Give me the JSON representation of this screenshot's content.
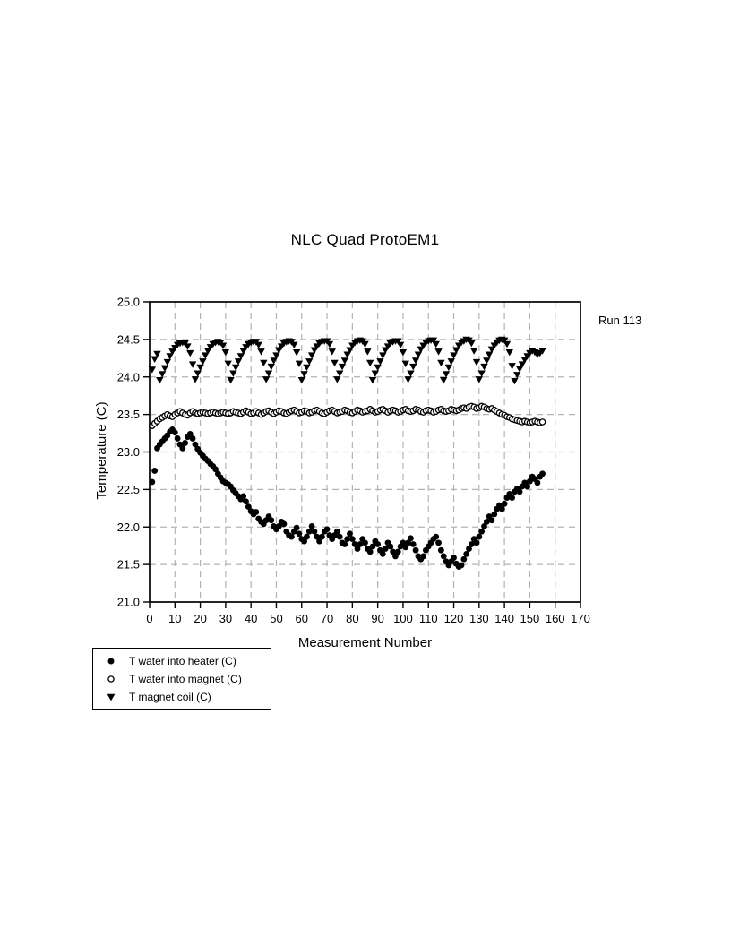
{
  "chart_data": {
    "type": "scatter",
    "title": "NLC Quad ProtoEM1",
    "annotation": "Run 113",
    "xlabel": "Measurement Number",
    "ylabel": "Temperature (C)",
    "xlim": [
      0,
      170
    ],
    "ylim": [
      21.0,
      25.0
    ],
    "xticks": [
      0,
      10,
      20,
      30,
      40,
      50,
      60,
      70,
      80,
      90,
      100,
      110,
      120,
      130,
      140,
      150,
      160,
      170
    ],
    "yticks": [
      "21.0",
      "21.5",
      "22.0",
      "22.5",
      "23.0",
      "23.5",
      "24.0",
      "24.5",
      "25.0"
    ],
    "grid": true,
    "grid_style": "dashed",
    "legend_position": "below-left",
    "colors": {
      "points": "#000000",
      "grid": "#b3b3b3",
      "background": "#ffffff"
    },
    "series": [
      {
        "name": "T water into heater (C)",
        "marker": "filled-circle",
        "x_start": 1,
        "y": [
          22.6,
          22.75,
          23.05,
          23.1,
          23.14,
          23.18,
          23.22,
          23.27,
          23.3,
          23.26,
          23.18,
          23.1,
          23.05,
          23.12,
          23.2,
          23.24,
          23.18,
          23.1,
          23.04,
          22.99,
          22.95,
          22.91,
          22.88,
          22.84,
          22.81,
          22.77,
          22.71,
          22.66,
          22.61,
          22.59,
          22.57,
          22.54,
          22.49,
          22.45,
          22.41,
          22.37,
          22.41,
          22.34,
          22.27,
          22.21,
          22.17,
          22.2,
          22.11,
          22.07,
          22.04,
          22.09,
          22.14,
          22.09,
          22.01,
          21.97,
          22.01,
          22.07,
          22.04,
          21.94,
          21.89,
          21.87,
          21.94,
          21.99,
          21.91,
          21.84,
          21.81,
          21.87,
          21.94,
          22.01,
          21.94,
          21.87,
          21.81,
          21.87,
          21.94,
          21.97,
          21.89,
          21.84,
          21.89,
          21.94,
          21.87,
          21.79,
          21.77,
          21.84,
          21.91,
          21.84,
          21.77,
          21.71,
          21.77,
          21.84,
          21.79,
          21.71,
          21.67,
          21.74,
          21.81,
          21.77,
          21.69,
          21.64,
          21.71,
          21.79,
          21.74,
          21.67,
          21.61,
          21.67,
          21.74,
          21.79,
          21.73,
          21.79,
          21.85,
          21.77,
          21.69,
          21.61,
          21.57,
          21.61,
          21.69,
          21.74,
          21.79,
          21.84,
          21.87,
          21.79,
          21.69,
          21.61,
          21.54,
          21.49,
          21.54,
          21.59,
          21.51,
          21.47,
          21.49,
          21.57,
          21.64,
          21.71,
          21.77,
          21.84,
          21.79,
          21.87,
          21.94,
          22.01,
          22.07,
          22.14,
          22.09,
          22.17,
          22.24,
          22.29,
          22.24,
          22.31,
          22.39,
          22.44,
          22.39,
          22.47,
          22.51,
          22.47,
          22.54,
          22.59,
          22.54,
          22.61,
          22.67,
          22.64,
          22.59,
          22.67,
          22.71
        ]
      },
      {
        "name": "T water into magnet (C)",
        "marker": "open-circle",
        "x_start": 1,
        "y": [
          23.35,
          23.38,
          23.41,
          23.44,
          23.46,
          23.48,
          23.5,
          23.48,
          23.47,
          23.5,
          23.52,
          23.54,
          23.52,
          23.5,
          23.49,
          23.52,
          23.54,
          23.52,
          23.51,
          23.52,
          23.53,
          23.52,
          23.51,
          23.52,
          23.53,
          23.52,
          23.51,
          23.52,
          23.53,
          23.52,
          23.51,
          23.52,
          23.54,
          23.53,
          23.52,
          23.51,
          23.53,
          23.55,
          23.53,
          23.51,
          23.52,
          23.54,
          23.52,
          23.5,
          23.52,
          23.54,
          23.55,
          23.53,
          23.51,
          23.53,
          23.55,
          23.54,
          23.52,
          23.51,
          23.53,
          23.55,
          23.56,
          23.54,
          23.52,
          23.53,
          23.55,
          23.54,
          23.52,
          23.53,
          23.55,
          23.56,
          23.54,
          23.52,
          23.51,
          23.53,
          23.55,
          23.56,
          23.54,
          23.52,
          23.53,
          23.54,
          23.56,
          23.55,
          23.53,
          23.52,
          23.54,
          23.56,
          23.55,
          23.53,
          23.54,
          23.55,
          23.57,
          23.55,
          23.53,
          23.54,
          23.56,
          23.57,
          23.55,
          23.53,
          23.55,
          23.56,
          23.55,
          23.53,
          23.54,
          23.56,
          23.57,
          23.55,
          23.54,
          23.55,
          23.57,
          23.56,
          23.54,
          23.53,
          23.55,
          23.56,
          23.55,
          23.53,
          23.54,
          23.56,
          23.57,
          23.55,
          23.54,
          23.55,
          23.57,
          23.56,
          23.55,
          23.56,
          23.58,
          23.59,
          23.58,
          23.6,
          23.61,
          23.6,
          23.58,
          23.59,
          23.61,
          23.6,
          23.58,
          23.57,
          23.58,
          23.56,
          23.54,
          23.52,
          23.5,
          23.49,
          23.47,
          23.46,
          23.44,
          23.43,
          23.42,
          23.41,
          23.4,
          23.41,
          23.4,
          23.39,
          23.4,
          23.41,
          23.4,
          23.39,
          23.4
        ]
      },
      {
        "name": "T magnet coil (C)",
        "marker": "filled-triangle-down",
        "x_start": 1,
        "y": [
          24.1,
          24.24,
          24.31,
          23.96,
          24.04,
          24.12,
          24.2,
          24.28,
          24.34,
          24.39,
          24.43,
          24.45,
          24.46,
          24.45,
          24.41,
          24.32,
          24.17,
          23.97,
          24.05,
          24.13,
          24.21,
          24.29,
          24.35,
          24.4,
          24.44,
          24.46,
          24.47,
          24.46,
          24.42,
          24.33,
          24.18,
          23.96,
          24.05,
          24.13,
          24.21,
          24.28,
          24.35,
          24.4,
          24.44,
          24.46,
          24.47,
          24.47,
          24.43,
          24.34,
          24.19,
          23.97,
          24.05,
          24.14,
          24.22,
          24.29,
          24.36,
          24.41,
          24.45,
          24.47,
          24.48,
          24.47,
          24.43,
          24.33,
          24.18,
          23.96,
          24.04,
          24.13,
          24.21,
          24.29,
          24.36,
          24.41,
          24.45,
          24.47,
          24.48,
          24.48,
          24.44,
          24.34,
          24.19,
          23.97,
          24.05,
          24.14,
          24.22,
          24.3,
          24.36,
          24.42,
          24.46,
          24.48,
          24.49,
          24.48,
          24.44,
          24.34,
          24.19,
          23.96,
          24.05,
          24.13,
          24.21,
          24.29,
          24.36,
          24.41,
          24.45,
          24.47,
          24.48,
          24.48,
          24.43,
          24.33,
          24.18,
          23.97,
          24.05,
          24.14,
          24.22,
          24.3,
          24.37,
          24.42,
          24.46,
          24.48,
          24.49,
          24.49,
          24.44,
          24.34,
          24.19,
          23.96,
          24.04,
          24.13,
          24.21,
          24.29,
          24.36,
          24.42,
          24.46,
          24.48,
          24.5,
          24.49,
          24.45,
          24.35,
          24.2,
          23.97,
          24.05,
          24.14,
          24.22,
          24.3,
          24.37,
          24.42,
          24.46,
          24.49,
          24.5,
          24.49,
          24.44,
          24.33,
          24.15,
          23.95,
          24.03,
          24.11,
          24.17,
          24.23,
          24.28,
          24.32,
          24.35,
          24.33,
          24.3,
          24.32,
          24.35
        ]
      }
    ]
  }
}
